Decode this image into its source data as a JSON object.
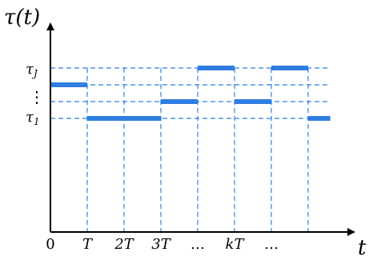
{
  "axes": {
    "y_label": "τ(t)",
    "x_label": "t",
    "x_ticks": [
      "0",
      "T",
      "2T",
      "3T",
      "…",
      "kT",
      "…"
    ],
    "y_levels": {
      "top": "τ",
      "top_sub": "J",
      "dots": "⋮",
      "bottom": "τ",
      "bottom_sub": "1"
    }
  },
  "colors": {
    "segment": "#2f7de1",
    "guide": "#2f7de1",
    "axis": "#000000"
  },
  "segments": [
    {
      "x_start": 0,
      "x_end": 1,
      "level": 3
    },
    {
      "x_start": 1,
      "x_end": 3,
      "level": 1
    },
    {
      "x_start": 3,
      "x_end": 4,
      "level": 2
    },
    {
      "x_start": 4,
      "x_end": 5,
      "level": 4
    },
    {
      "x_start": 5,
      "x_end": 6,
      "level": 2
    },
    {
      "x_start": 6,
      "x_end": 7,
      "level": 4
    },
    {
      "x_start": 7,
      "x_end": 7.6,
      "level": 1
    }
  ]
}
